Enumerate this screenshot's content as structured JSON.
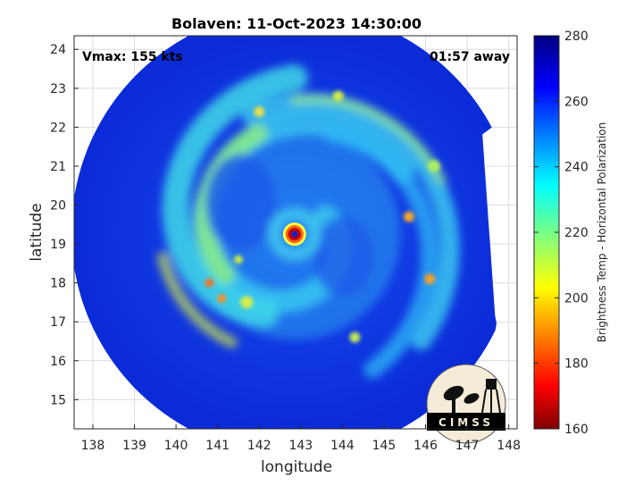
{
  "chart_data": {
    "type": "heatmap",
    "title": "Bolaven: 11-Oct-2023 14:30:00",
    "xlabel": "longitude",
    "ylabel": "latitude",
    "xlim": [
      137.55,
      148.2
    ],
    "ylim": [
      14.25,
      24.35
    ],
    "xticks": [
      138,
      139,
      140,
      141,
      142,
      143,
      144,
      145,
      146,
      147,
      148
    ],
    "yticks": [
      15,
      16,
      17,
      18,
      19,
      20,
      21,
      22,
      23,
      24
    ],
    "grid": true,
    "annotations": {
      "vmax": "Vmax: 155 kts",
      "away": "01:57 away"
    },
    "colorbar": {
      "label": "Brightness Temp - Horizontal Polarization",
      "range": [
        160,
        280
      ],
      "ticks": [
        160,
        180,
        200,
        220,
        240,
        260,
        280
      ],
      "colormap": "jet"
    },
    "storm_center": {
      "lon": 142.85,
      "lat": 19.25
    },
    "logo": "CIMSS"
  }
}
